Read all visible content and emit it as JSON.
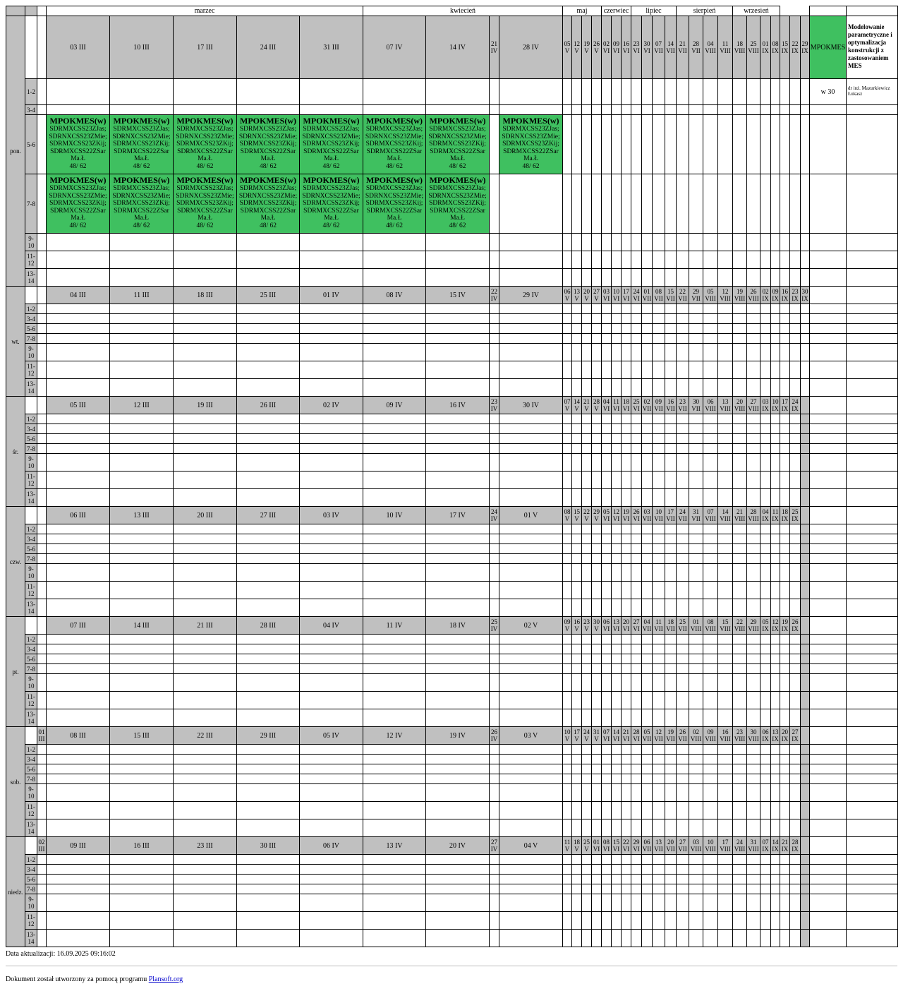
{
  "months": [
    "marzec",
    "kwiecień",
    "maj",
    "czerwiec",
    "lipiec",
    "sierpień",
    "wrzesień"
  ],
  "days": [
    "pon.",
    "wt.",
    "śr.",
    "czw.",
    "pt.",
    "sob.",
    "niedz."
  ],
  "slots": [
    "1-2",
    "3-4",
    "5-6",
    "7-8",
    "9-10",
    "11-12",
    "13-14"
  ],
  "week_dates": [
    [
      "",
      "03 III",
      "10 III",
      "17 III",
      "24 III",
      "31 III",
      "07 IV",
      "14 IV",
      "21 IV",
      "28 IV",
      "05 V",
      "12 V",
      "19 V",
      "26 V",
      "02 VI",
      "09 VI",
      "16 VI",
      "23 VI",
      "30 VI",
      "07 VII",
      "14 VII",
      "21 VII",
      "28 VII",
      "04 VIII",
      "11 VIII",
      "18 VIII",
      "25 VIII",
      "01 IX",
      "08 IX",
      "15 IX",
      "22 IX",
      "29 IX"
    ],
    [
      "",
      "04 III",
      "11 III",
      "18 III",
      "25 III",
      "01 IV",
      "08 IV",
      "15 IV",
      "22 IV",
      "29 IV",
      "06 V",
      "13 V",
      "20 V",
      "27 V",
      "03 VI",
      "10 VI",
      "17 VI",
      "24 VI",
      "01 VII",
      "08 VII",
      "15 VII",
      "22 VII",
      "29 VII",
      "05 VIII",
      "12 VIII",
      "19 VIII",
      "26 VIII",
      "02 IX",
      "09 IX",
      "16 IX",
      "23 IX",
      "30 IX"
    ],
    [
      "",
      "05 III",
      "12 III",
      "19 III",
      "26 III",
      "02 IV",
      "09 IV",
      "16 IV",
      "23 IV",
      "30 IV",
      "07 V",
      "14 V",
      "21 V",
      "28 V",
      "04 VI",
      "11 VI",
      "18 VI",
      "25 VI",
      "02 VII",
      "09 VII",
      "16 VII",
      "23 VII",
      "30 VII",
      "06 VIII",
      "13 VIII",
      "20 VIII",
      "27 VIII",
      "03 IX",
      "10 IX",
      "17 IX",
      "24 IX",
      ""
    ],
    [
      "",
      "06 III",
      "13 III",
      "20 III",
      "27 III",
      "03 IV",
      "10 IV",
      "17 IV",
      "24 IV",
      "01 V",
      "08 V",
      "15 V",
      "22 V",
      "29 V",
      "05 VI",
      "12 VI",
      "19 VI",
      "26 VI",
      "03 VII",
      "10 VII",
      "17 VII",
      "24 VII",
      "31 VII",
      "07 VIII",
      "14 VIII",
      "21 VIII",
      "28 VIII",
      "04 IX",
      "11 IX",
      "18 IX",
      "25 IX",
      ""
    ],
    [
      "",
      "07 III",
      "14 III",
      "21 III",
      "28 III",
      "04 IV",
      "11 IV",
      "18 IV",
      "25 IV",
      "02 V",
      "09 V",
      "16 V",
      "23 V",
      "30 V",
      "06 VI",
      "13 VI",
      "20 VI",
      "27 VI",
      "04 VII",
      "11 VII",
      "18 VII",
      "25 VII",
      "01 VIII",
      "08 VIII",
      "15 VIII",
      "22 VIII",
      "29 VIII",
      "05 IX",
      "12 IX",
      "19 IX",
      "26 IX",
      ""
    ],
    [
      "01 III",
      "08 III",
      "15 III",
      "22 III",
      "29 III",
      "05 IV",
      "12 IV",
      "19 IV",
      "26 IV",
      "03 V",
      "10 V",
      "17 V",
      "24 V",
      "31 V",
      "07 VI",
      "14 VI",
      "21 VI",
      "28 VI",
      "05 VII",
      "12 VII",
      "19 VII",
      "26 VII",
      "02 VIII",
      "09 VIII",
      "16 VIII",
      "23 VIII",
      "30 VIII",
      "06 IX",
      "13 IX",
      "20 IX",
      "27 IX",
      ""
    ],
    [
      "02 III",
      "09 III",
      "16 III",
      "23 III",
      "30 III",
      "06 IV",
      "13 IV",
      "20 IV",
      "27 IV",
      "04 V",
      "11 V",
      "18 V",
      "25 V",
      "01 VI",
      "08 VI",
      "15 VI",
      "22 VI",
      "29 VI",
      "06 VII",
      "13 VII",
      "20 VII",
      "27 VII",
      "03 VIII",
      "10 VIII",
      "17 VIII",
      "24 VIII",
      "31 VIII",
      "07 IX",
      "14 IX",
      "21 IX",
      "28 IX",
      ""
    ]
  ],
  "event": {
    "title": "MPOKMES(w)",
    "groups": [
      "SDRMXCSS23ZJas;",
      "SDRNXCSS23ZMie;",
      "SDRMXCSS23ZKij;",
      "SDRMXCSS22ZSar"
    ],
    "teacher": "Ma.Ł",
    "count": "48/ 62"
  },
  "events_by_slot": {
    "mon_5_6": [
      "03 III",
      "10 III",
      "17 III",
      "24 III",
      "31 III",
      "07 IV",
      "14 IV",
      "28 IV"
    ],
    "mon_7_8": [
      "03 III",
      "10 III",
      "17 III",
      "24 III",
      "31 III",
      "07 IV",
      "14 IV"
    ]
  },
  "legend": {
    "code": "MPOKMES",
    "name": "Modelowanie parametryczne i optymalizacja konstrukcji z zastosowaniem MES",
    "hours": "w 30",
    "teacher": "dr inż. Mazurkiewicz Łukasz"
  },
  "footer": {
    "update": "Data aktualizacji: 16.09.2025 09:16:02",
    "doc_prefix": "Dokument został utworzony za pomocą programu ",
    "link": "Plansoft.org"
  },
  "colors": {
    "header": "#c0c0c0",
    "event": "#3fc060"
  }
}
